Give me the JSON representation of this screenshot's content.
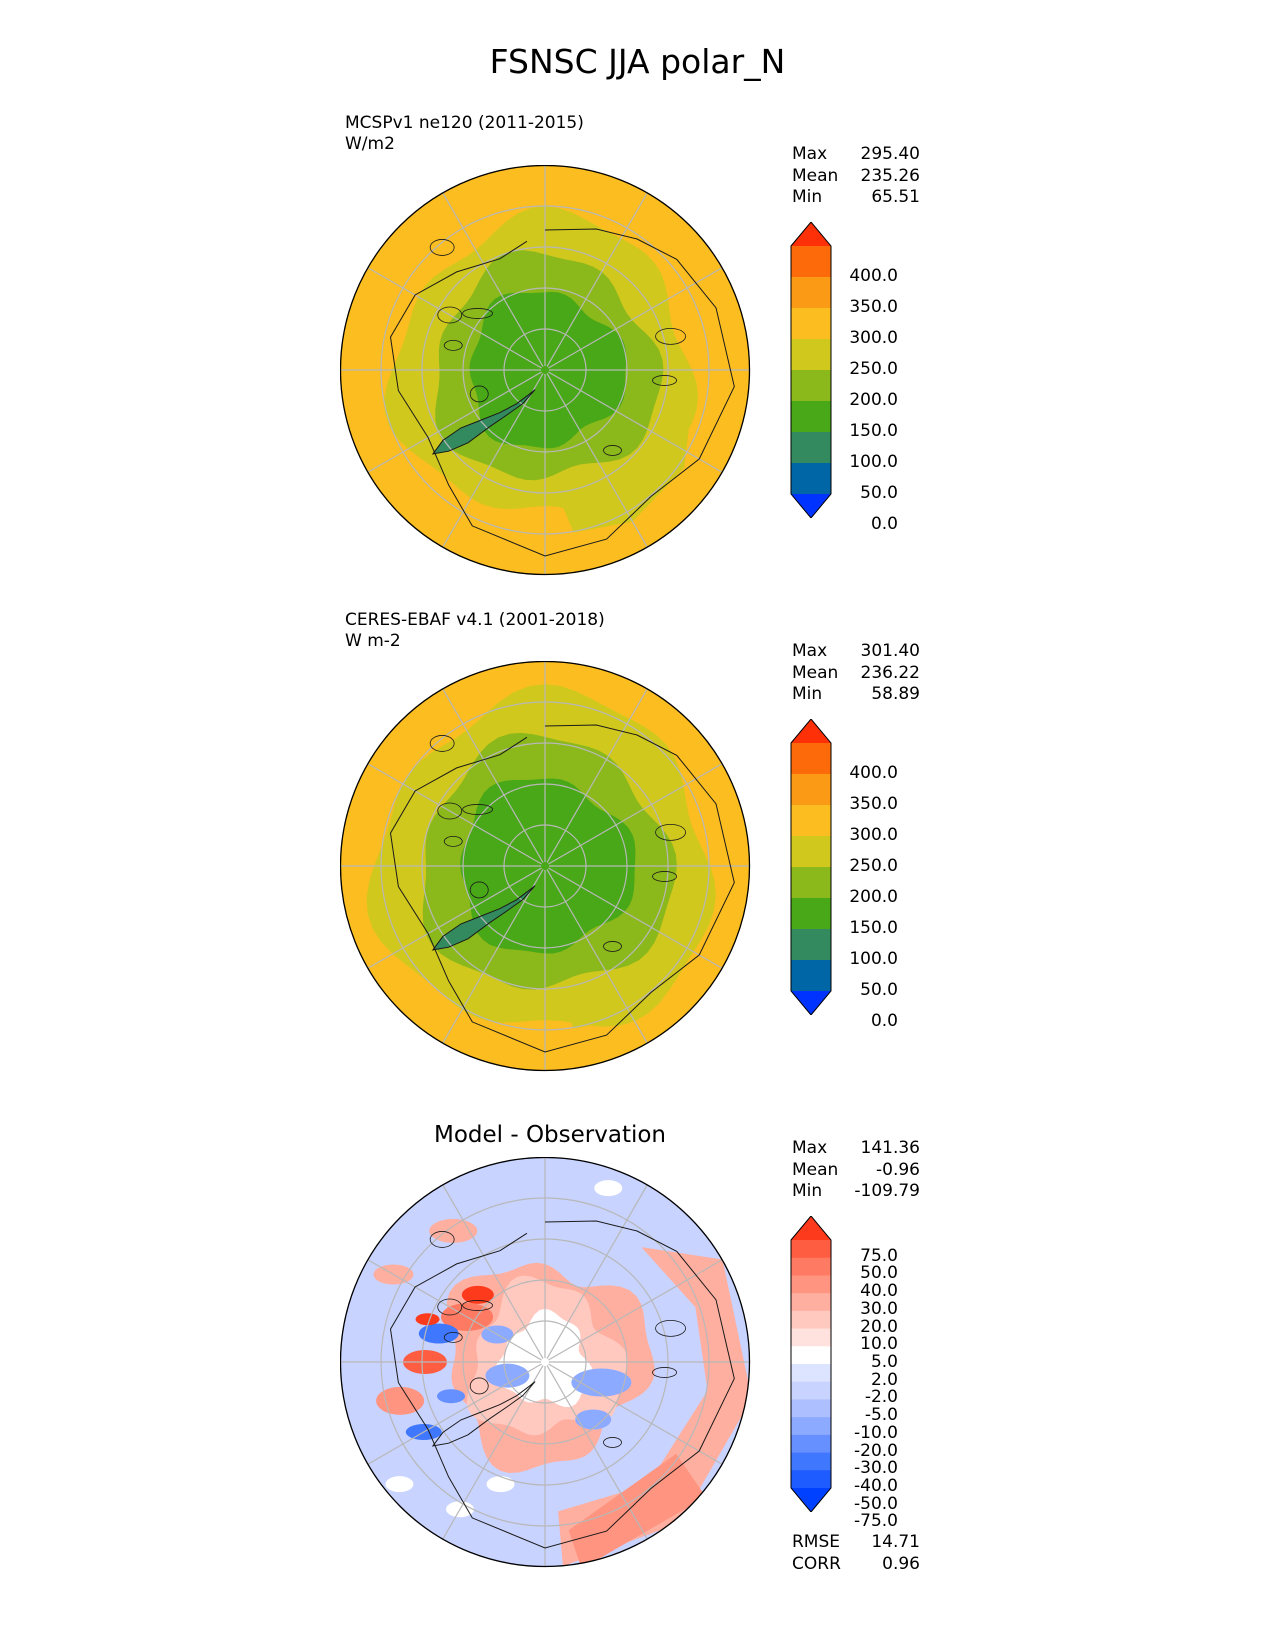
{
  "figure": {
    "title": "FSNSC JJA polar_N"
  },
  "colors": {
    "abs_levels": [
      "#0033ff",
      "#0066a6",
      "#338a5e",
      "#48a818",
      "#8bb81a",
      "#d1c81e",
      "#fbbd20",
      "#fb9a14",
      "#fc6a0a",
      "#fe3008"
    ],
    "diff_levels": [
      "#0040ff",
      "#1f5cff",
      "#4077ff",
      "#6690ff",
      "#8caaff",
      "#aebfff",
      "#c8d3ff",
      "#dde4ff",
      "#ffffff",
      "#ffe2de",
      "#ffc9c0",
      "#ffafa0",
      "#ff9480",
      "#ff7a62",
      "#ff5d42",
      "#fe3a1c"
    ],
    "land_outline": "#1a1a1a",
    "grid": "#b8b8b8"
  },
  "chart_data": [
    {
      "type": "heatmap",
      "projection": "north-polar-stereographic",
      "title_left": "MCSPv1 ne120 (2011-2015)",
      "units": "W/m2",
      "stats": [
        {
          "label": "Max",
          "value": "295.40"
        },
        {
          "label": "Mean",
          "value": "235.26"
        },
        {
          "label": "Min",
          "value": "65.51"
        }
      ],
      "colorbar": {
        "ticks": [
          "400.0",
          "350.0",
          "300.0",
          "250.0",
          "200.0",
          "150.0",
          "100.0",
          "50.0",
          "0.0"
        ],
        "extend": "both"
      },
      "grid": true
    },
    {
      "type": "heatmap",
      "projection": "north-polar-stereographic",
      "title_left": "CERES-EBAF v4.1 (2001-2018)",
      "units": "W m-2",
      "stats": [
        {
          "label": "Max",
          "value": "301.40"
        },
        {
          "label": "Mean",
          "value": "236.22"
        },
        {
          "label": "Min",
          "value": "58.89"
        }
      ],
      "colorbar": {
        "ticks": [
          "400.0",
          "350.0",
          "300.0",
          "250.0",
          "200.0",
          "150.0",
          "100.0",
          "50.0",
          "0.0"
        ],
        "extend": "both"
      },
      "grid": true
    },
    {
      "type": "heatmap",
      "projection": "north-polar-stereographic",
      "title": "Model - Observation",
      "stats": [
        {
          "label": "Max",
          "value": "141.36"
        },
        {
          "label": "Mean",
          "value": "-0.96"
        },
        {
          "label": "Min",
          "value": "-109.79"
        }
      ],
      "colorbar": {
        "ticks": [
          "75.0",
          "50.0",
          "40.0",
          "30.0",
          "20.0",
          "10.0",
          "5.0",
          "2.0",
          "-2.0",
          "-5.0",
          "-10.0",
          "-20.0",
          "-30.0",
          "-40.0",
          "-50.0",
          "-75.0"
        ],
        "extend": "both"
      },
      "metrics": [
        {
          "label": "RMSE",
          "value": "14.71"
        },
        {
          "label": "CORR",
          "value": "0.96"
        }
      ],
      "grid": true
    }
  ]
}
